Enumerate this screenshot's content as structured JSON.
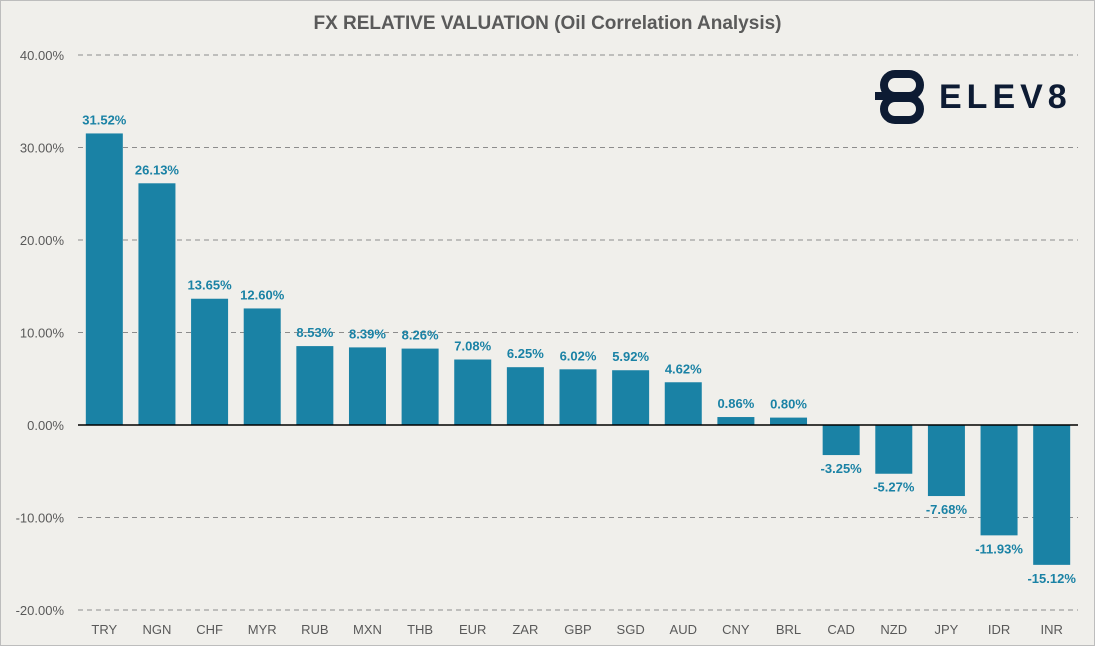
{
  "chart_data": {
    "type": "bar",
    "title": "FX RELATIVE VALUATION (Oil Correlation Analysis)",
    "categories": [
      "TRY",
      "NGN",
      "CHF",
      "MYR",
      "RUB",
      "MXN",
      "THB",
      "EUR",
      "ZAR",
      "GBP",
      "SGD",
      "AUD",
      "CNY",
      "BRL",
      "CAD",
      "NZD",
      "JPY",
      "IDR",
      "INR"
    ],
    "values": [
      31.52,
      26.13,
      13.65,
      12.6,
      8.53,
      8.39,
      8.26,
      7.08,
      6.25,
      6.02,
      5.92,
      4.62,
      0.86,
      0.8,
      -3.25,
      -5.27,
      -7.68,
      -11.93,
      -15.12
    ],
    "data_labels": [
      "31.52%",
      "26.13%",
      "13.65%",
      "12.60%",
      "8.53%",
      "8.39%",
      "8.26%",
      "7.08%",
      "6.25%",
      "6.02%",
      "5.92%",
      "4.62%",
      "0.86%",
      "0.80%",
      "-3.25%",
      "-5.27%",
      "-7.68%",
      "-11.93%",
      "-15.12%"
    ],
    "ylim": [
      -20,
      40
    ],
    "yticks": [
      40,
      30,
      20,
      10,
      0,
      -10,
      -20
    ],
    "ytick_labels": [
      "40.00%",
      "30.00%",
      "20.00%",
      "10.00%",
      "0.00%",
      "-10.00%",
      "-20.00%"
    ],
    "xlabel": "",
    "ylabel": "",
    "grid": true,
    "legend": "none",
    "colors": {
      "bar": "#1a82a5",
      "label": "#1a82a5",
      "tick": "#595959",
      "grid": "#8c8c8c",
      "axis": "#000000"
    }
  },
  "logo": {
    "text": "ELEV8",
    "icon": "elev8-logo-icon",
    "color": "#0d1b33"
  }
}
